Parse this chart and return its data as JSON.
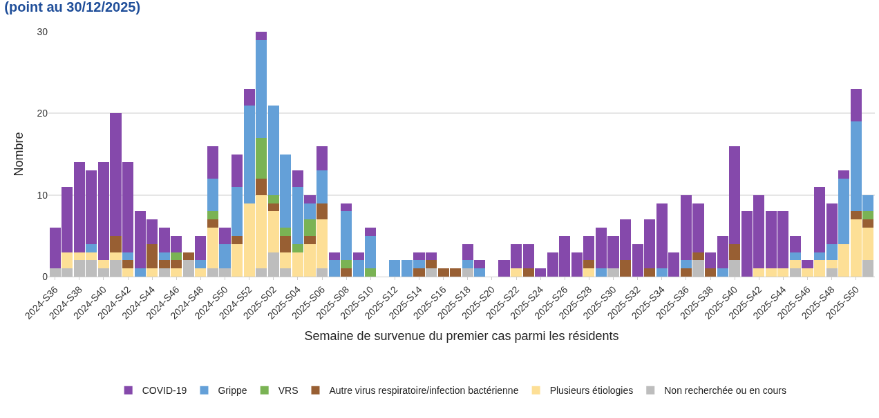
{
  "chart_data": {
    "type": "bar",
    "stacked": true,
    "title": "(point au 30/12/2025)",
    "xlabel": "Semaine de survenue du premier cas parmi les résidents",
    "ylabel": "Nombre",
    "categories": [
      "2024-S36",
      null,
      "2024-S38",
      null,
      "2024-S40",
      null,
      "2024-S42",
      null,
      "2024-S44",
      null,
      "2024-S46",
      null,
      "2024-S48",
      null,
      "2024-S50",
      null,
      "2024-S52",
      null,
      "2025-S02",
      null,
      "2025-S04",
      null,
      "2025-S06",
      null,
      "2025-S08",
      null,
      "2025-S10",
      null,
      "2025-S12",
      null,
      "2025-S14",
      null,
      "2025-S16",
      null,
      "2025-S18",
      null,
      "2025-S20",
      null,
      "2025-S22",
      null,
      "2025-S24",
      null,
      "2025-S26",
      null,
      "2025-S28",
      null,
      "2025-S30",
      null,
      "2025-S32",
      null,
      "2025-S34",
      null,
      "2025-S36",
      null,
      "2025-S38",
      null,
      "2025-S40",
      null,
      "2025-S42",
      null,
      "2025-S44",
      null,
      "2025-S46",
      null,
      "2025-S48",
      null,
      "2025-S50",
      null
    ],
    "series": [
      {
        "name": "Non recherchée ou en cours",
        "color": "#bdbdbd",
        "values": [
          1,
          1,
          2,
          2,
          1,
          2,
          0,
          0,
          0,
          1,
          0,
          2,
          0,
          1,
          1,
          0,
          0,
          1,
          3,
          1,
          0,
          0,
          1,
          0,
          0,
          0,
          0,
          0,
          0,
          0,
          0,
          1,
          0,
          0,
          1,
          0,
          0,
          0,
          0,
          0,
          0,
          0,
          0,
          0,
          0,
          0,
          1,
          0,
          0,
          0,
          0,
          0,
          0,
          2,
          0,
          0,
          2,
          0,
          0,
          0,
          0,
          1,
          0,
          0,
          1,
          0,
          0,
          2
        ]
      },
      {
        "name": "Plusieurs étiologies",
        "color": "#fddf96",
        "values": [
          0,
          2,
          1,
          1,
          1,
          1,
          1,
          0,
          1,
          0,
          1,
          0,
          1,
          5,
          0,
          4,
          9,
          9,
          5,
          2,
          3,
          4,
          6,
          0,
          0,
          0,
          0,
          0,
          0,
          0,
          0,
          0,
          0,
          0,
          0,
          0,
          0,
          0,
          1,
          0,
          0,
          0,
          0,
          0,
          1,
          0,
          0,
          0,
          0,
          0,
          0,
          0,
          0,
          0,
          0,
          0,
          0,
          0,
          1,
          1,
          1,
          1,
          1,
          2,
          1,
          4,
          7,
          4
        ]
      },
      {
        "name": "Autre virus respiratoire/infection bactérienne",
        "color": "#985f33",
        "values": [
          0,
          0,
          0,
          0,
          0,
          2,
          1,
          0,
          3,
          1,
          1,
          1,
          0,
          1,
          0,
          1,
          0,
          2,
          1,
          2,
          0,
          1,
          2,
          0,
          1,
          0,
          0,
          0,
          0,
          0,
          1,
          1,
          1,
          1,
          0,
          0,
          0,
          0,
          0,
          1,
          0,
          0,
          0,
          0,
          1,
          0,
          0,
          2,
          0,
          1,
          0,
          0,
          1,
          1,
          1,
          0,
          2,
          0,
          0,
          0,
          0,
          0,
          0,
          0,
          0,
          0,
          1,
          1
        ]
      },
      {
        "name": "VRS",
        "color": "#7ab354",
        "values": [
          0,
          0,
          0,
          0,
          0,
          0,
          0,
          0,
          0,
          0,
          1,
          0,
          0,
          1,
          0,
          0,
          0,
          5,
          1,
          1,
          1,
          2,
          0,
          0,
          1,
          0,
          1,
          0,
          0,
          0,
          0,
          0,
          0,
          0,
          0,
          0,
          0,
          0,
          0,
          0,
          0,
          0,
          0,
          0,
          0,
          0,
          0,
          0,
          0,
          0,
          0,
          0,
          0,
          0,
          0,
          0,
          0,
          0,
          0,
          0,
          0,
          0,
          0,
          0,
          0,
          0,
          0,
          1
        ]
      },
      {
        "name": "Grippe",
        "color": "#64a0d8",
        "values": [
          0,
          0,
          0,
          1,
          0,
          0,
          1,
          1,
          0,
          1,
          0,
          0,
          1,
          4,
          3,
          6,
          12,
          12,
          11,
          9,
          7,
          2,
          4,
          2,
          6,
          2,
          4,
          0,
          2,
          2,
          1,
          0,
          0,
          0,
          1,
          1,
          0,
          0,
          0,
          0,
          0,
          0,
          0,
          0,
          0,
          1,
          0,
          0,
          0,
          0,
          1,
          0,
          1,
          0,
          0,
          1,
          0,
          0,
          0,
          0,
          0,
          1,
          0,
          1,
          2,
          8,
          11,
          2
        ]
      },
      {
        "name": "COVID-19",
        "color": "#8549ab",
        "values": [
          5,
          8,
          11,
          9,
          12,
          15,
          11,
          7,
          3,
          3,
          2,
          0,
          3,
          4,
          2,
          4,
          2,
          1,
          0,
          0,
          2,
          1,
          3,
          1,
          1,
          1,
          1,
          0,
          0,
          0,
          1,
          1,
          0,
          0,
          2,
          1,
          0,
          2,
          3,
          3,
          1,
          3,
          5,
          3,
          3,
          5,
          4,
          5,
          4,
          6,
          8,
          3,
          8,
          6,
          2,
          4,
          12,
          8,
          9,
          7,
          7,
          2,
          1,
          8,
          5,
          1,
          4,
          0
        ]
      }
    ],
    "ylim": [
      0,
      30
    ],
    "yticks": [
      0,
      10,
      20,
      30
    ],
    "grid": "y",
    "legend": "bottom"
  }
}
